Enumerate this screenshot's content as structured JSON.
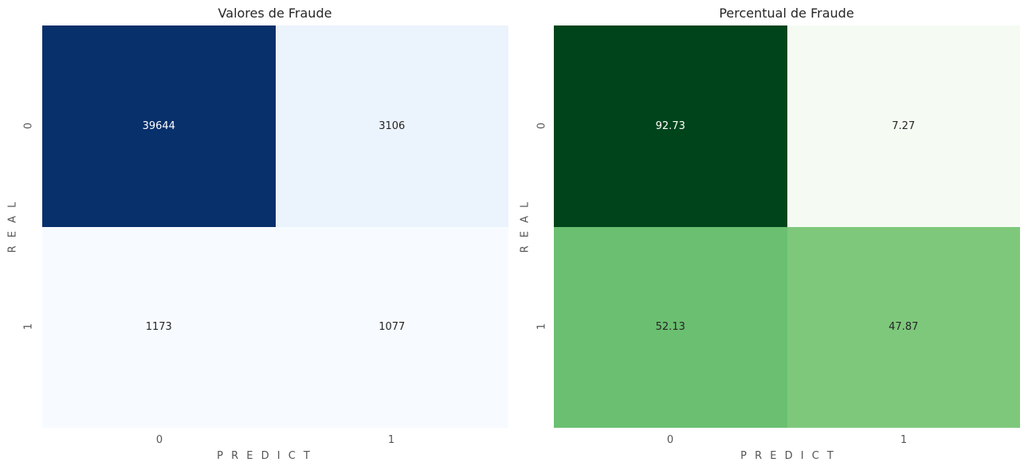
{
  "chart_data": [
    {
      "type": "heatmap",
      "title": "Valores de Fraude",
      "xlabel": "P R E D I C T",
      "ylabel": "R E A L",
      "x_categories": [
        "0",
        "1"
      ],
      "y_categories": [
        "0",
        "1"
      ],
      "values": [
        [
          39644,
          3106
        ],
        [
          1173,
          1077
        ]
      ],
      "labels": [
        [
          "39644",
          "3106"
        ],
        [
          "1173",
          "1077"
        ]
      ],
      "colorscale": "Blues",
      "cell_colors": [
        [
          "#08306b",
          "#ebf3fc"
        ],
        [
          "#f7fbff",
          "#f7fbff"
        ]
      ],
      "text_colors": [
        [
          "#ffffff",
          "#262626"
        ],
        [
          "#262626",
          "#262626"
        ]
      ]
    },
    {
      "type": "heatmap",
      "title": "Percentual de Fraude",
      "xlabel": "P R E D I C T",
      "ylabel": "R E A L",
      "x_categories": [
        "0",
        "1"
      ],
      "y_categories": [
        "0",
        "1"
      ],
      "values": [
        [
          92.73,
          7.27
        ],
        [
          52.13,
          47.87
        ]
      ],
      "labels": [
        [
          "92.73",
          "7.27"
        ],
        [
          "52.13",
          "47.87"
        ]
      ],
      "colorscale": "Greens",
      "cell_colors": [
        [
          "#00441b",
          "#f5fbf3"
        ],
        [
          "#6bbf70",
          "#7ec87c"
        ]
      ],
      "text_colors": [
        [
          "#ffffff",
          "#262626"
        ],
        [
          "#262626",
          "#262626"
        ]
      ]
    }
  ]
}
